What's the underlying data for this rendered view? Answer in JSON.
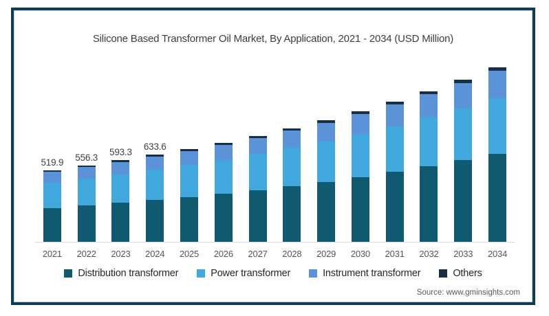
{
  "title": "Silicone Based Transformer Oil Market, By Application, 2021 - 2034 (USD Million)",
  "source": "Source: www.gminsights.com",
  "frame": {
    "border_color": "#0e3d56",
    "background": "#ffffff"
  },
  "axis_color": "#d9d9d9",
  "chart_data": {
    "type": "bar",
    "stacked": true,
    "title": "Silicone Based Transformer Oil Market, By Application, 2021 - 2034 (USD Million)",
    "unit": "USD Million",
    "xlabel": "",
    "ylabel": "",
    "grid": false,
    "legend_position": "bottom",
    "ylim": [
      0,
      1300
    ],
    "categories": [
      "2021",
      "2022",
      "2023",
      "2024",
      "2025",
      "2026",
      "2027",
      "2028",
      "2029",
      "2030",
      "2031",
      "2032",
      "2033",
      "2034"
    ],
    "totals": [
      519.9,
      556.3,
      593.3,
      633.6,
      676,
      722,
      772,
      827,
      886,
      950,
      1020,
      1097,
      1180,
      1270
    ],
    "total_labels_shown": [
      "519.9",
      "556.3",
      "593.3",
      "633.6",
      null,
      null,
      null,
      null,
      null,
      null,
      null,
      null,
      null,
      null
    ],
    "series": [
      {
        "name": "Distribution transformer",
        "color": "#0f5a70",
        "values": [
          245.9,
          264.5,
          283.5,
          304.4,
          326.4,
          350.4,
          376.6,
          405.4,
          436.5,
          470.4,
          507.6,
          548.6,
          593.0,
          641.4
        ]
      },
      {
        "name": "Power transformer",
        "color": "#41a8dd",
        "values": [
          185.1,
          196.4,
          207.8,
          220.0,
          232.7,
          246.5,
          261.3,
          277.5,
          294.7,
          313.2,
          333.3,
          355.2,
          378.7,
          403.9
        ]
      },
      {
        "name": "Instrument transformer",
        "color": "#5b92d8",
        "values": [
          78.0,
          83.7,
          89.5,
          95.9,
          102.6,
          110.0,
          118.0,
          126.7,
          136.2,
          146.5,
          157.7,
          170.1,
          183.5,
          198.1
        ]
      },
      {
        "name": "Others",
        "color": "#152f44",
        "values": [
          10.9,
          11.7,
          12.5,
          13.3,
          14.2,
          15.2,
          16.2,
          17.4,
          18.6,
          20.0,
          21.4,
          23.0,
          24.8,
          26.7
        ]
      }
    ]
  }
}
